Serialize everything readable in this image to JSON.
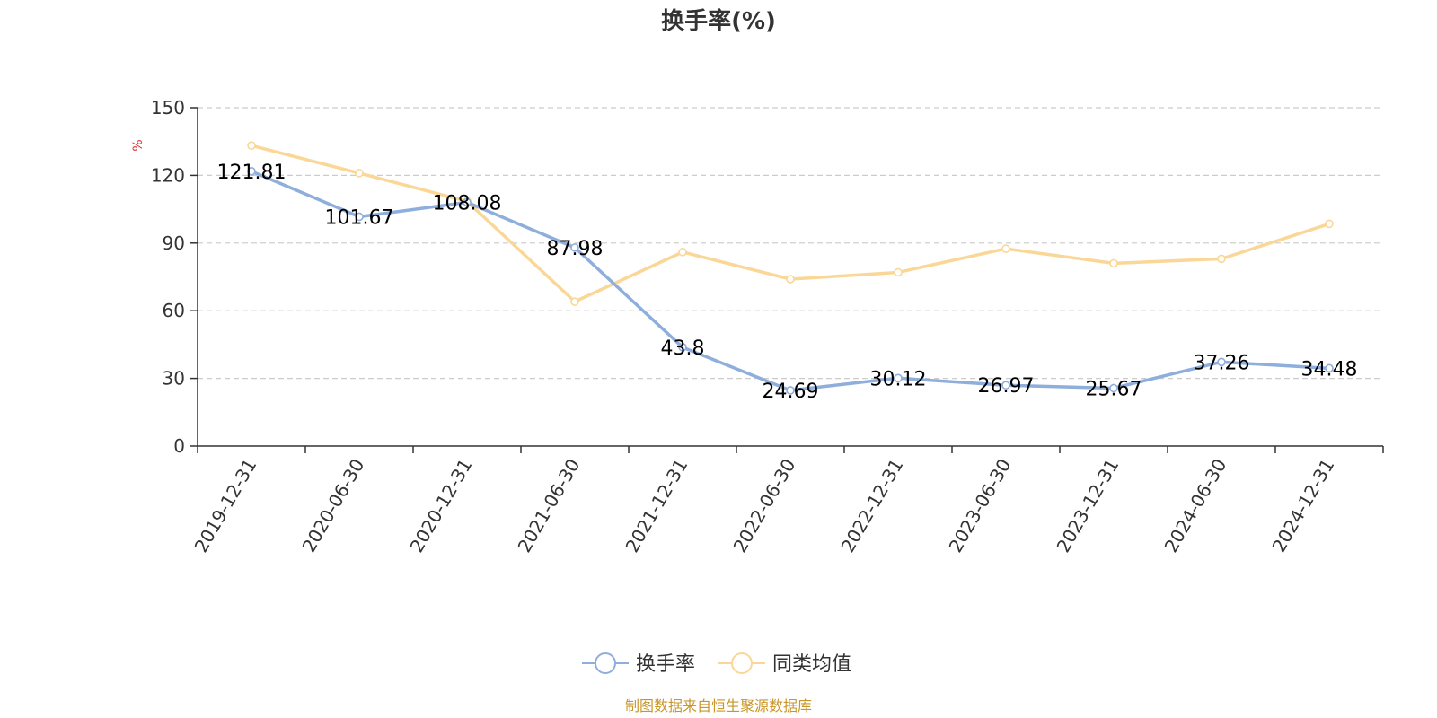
{
  "chart_data": {
    "type": "line",
    "title": "换手率(%)",
    "ylabel": "%",
    "ylim": [
      0,
      150
    ],
    "yticks": [
      0,
      30,
      60,
      90,
      120,
      150
    ],
    "grid": true,
    "categories": [
      "2019-12-31",
      "2020-06-30",
      "2020-12-31",
      "2021-06-30",
      "2021-12-31",
      "2022-06-30",
      "2022-12-31",
      "2023-06-30",
      "2023-12-31",
      "2024-06-30",
      "2024-12-31"
    ],
    "series": [
      {
        "name": "换手率",
        "color": "#8eaedb",
        "values": [
          121.81,
          101.67,
          108.08,
          87.98,
          43.8,
          24.69,
          30.12,
          26.97,
          25.67,
          37.26,
          34.48
        ],
        "labels": [
          "121.81",
          "101.67",
          "108.08",
          "87.98",
          "43.8",
          "24.69",
          "30.12",
          "26.97",
          "25.67",
          "37.26",
          "34.48"
        ],
        "show_labels": true
      },
      {
        "name": "同类均值",
        "color": "#fad797",
        "values": [
          133.2,
          121.0,
          108.5,
          64.0,
          86.0,
          74.0,
          77.0,
          87.5,
          81.0,
          83.0,
          98.5
        ],
        "show_labels": false
      }
    ],
    "legend_position": "bottom-center"
  },
  "colors": {
    "axis": "#333333",
    "grid": "#cccccc",
    "unit": "#e03030",
    "source": "#c8962a"
  },
  "source_note": "制图数据来自恒生聚源数据库"
}
